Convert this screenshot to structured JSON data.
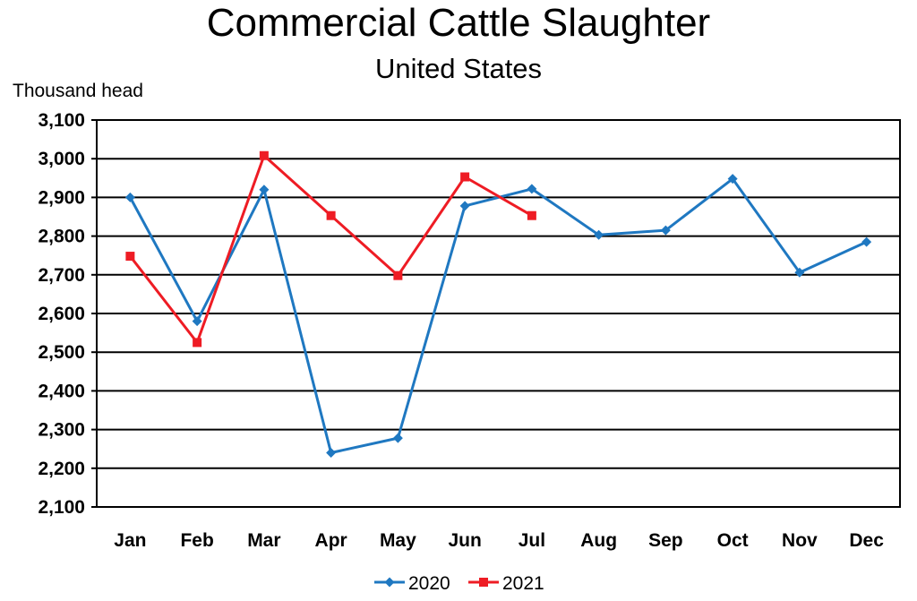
{
  "chart_data": {
    "type": "line",
    "title": "Commercial Cattle Slaughter",
    "subtitle": "United States",
    "ylabel": "Thousand head",
    "xlabel": "",
    "categories": [
      "Jan",
      "Feb",
      "Mar",
      "Apr",
      "May",
      "Jun",
      "Jul",
      "Aug",
      "Sep",
      "Oct",
      "Nov",
      "Dec"
    ],
    "ylim": [
      2100,
      3100
    ],
    "ytick_step": 100,
    "y_ticks": [
      "2,100",
      "2,200",
      "2,300",
      "2,400",
      "2,500",
      "2,600",
      "2,700",
      "2,800",
      "2,900",
      "3,000",
      "3,100"
    ],
    "grid": true,
    "legend_position": "bottom",
    "series": [
      {
        "name": "2020",
        "color": "#1f78c1",
        "marker": "diamond",
        "values": [
          2900,
          2580,
          2920,
          2240,
          2278,
          2878,
          2922,
          2803,
          2815,
          2948,
          2706,
          2785
        ]
      },
      {
        "name": "2021",
        "color": "#ee1c24",
        "marker": "square",
        "values": [
          2748,
          2525,
          3008,
          2853,
          2698,
          2953,
          2853,
          null,
          null,
          null,
          null,
          null
        ]
      }
    ]
  }
}
